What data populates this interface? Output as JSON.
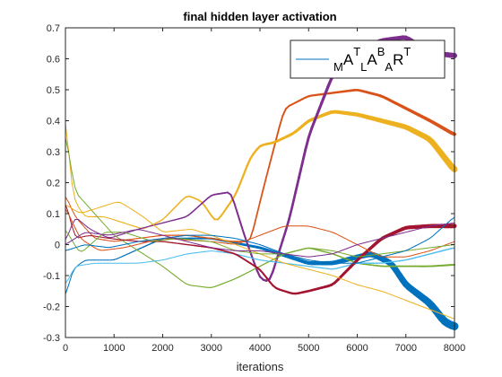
{
  "chart_data": {
    "type": "line",
    "title": "final hidden layer activation",
    "xlabel": "iterations",
    "ylabel": "",
    "xlim": [
      0,
      8000
    ],
    "ylim": [
      -0.3,
      0.7
    ],
    "xticks": [
      0,
      1000,
      2000,
      3000,
      4000,
      5000,
      6000,
      7000,
      8000
    ],
    "yticks": [
      -0.3,
      -0.2,
      -0.1,
      0,
      0.1,
      0.2,
      0.3,
      0.4,
      0.5,
      0.6,
      0.7
    ],
    "grid": false,
    "legend": {
      "placement": "top-right",
      "entries": [
        {
          "label_parts": [
            {
              "text": "M",
              "shift": "sub"
            },
            {
              "text": "A",
              "shift": "base"
            },
            {
              "text": "T",
              "shift": "super"
            },
            {
              "text": "L",
              "shift": "sub"
            },
            {
              "text": "A",
              "shift": "base"
            },
            {
              "text": "B",
              "shift": "super"
            },
            {
              "text": "A",
              "shift": "sub"
            },
            {
              "text": "R",
              "shift": "base"
            },
            {
              "text": "T",
              "shift": "super"
            }
          ],
          "color": "#0072BD"
        }
      ]
    },
    "series": [
      {
        "color": "#0072BD",
        "width": [
          1,
          9
        ],
        "x": [
          0,
          150,
          400,
          1000,
          2000,
          3000,
          4000,
          5000,
          5500,
          6000,
          6300,
          6700,
          7000,
          7500,
          7800,
          8000
        ],
        "y": [
          -0.17,
          -0.08,
          -0.05,
          -0.05,
          0.02,
          0.02,
          -0.01,
          -0.06,
          -0.06,
          -0.04,
          -0.03,
          -0.06,
          -0.13,
          -0.19,
          -0.25,
          -0.265
        ]
      },
      {
        "color": "#D95319",
        "width": [
          1,
          4
        ],
        "x": [
          0,
          200,
          600,
          1000,
          1500,
          2000,
          2500,
          3000,
          3400,
          3800,
          4100,
          4500,
          5000,
          5500,
          6000,
          6500,
          7000,
          7500,
          8000
        ],
        "y": [
          0.16,
          0.09,
          0.02,
          0.01,
          0.02,
          0.03,
          0.03,
          0.02,
          0.01,
          0.01,
          0.2,
          0.44,
          0.48,
          0.49,
          0.5,
          0.48,
          0.44,
          0.4,
          0.355
        ]
      },
      {
        "color": "#EDB120",
        "width": [
          1,
          7
        ],
        "x": [
          0,
          150,
          400,
          800,
          1200,
          1600,
          2000,
          2500,
          2800,
          3100,
          3500,
          3800,
          4000,
          4300,
          4700,
          5000,
          5500,
          6000,
          6500,
          7000,
          7500,
          7800,
          8000
        ],
        "y": [
          0.42,
          0.15,
          0.09,
          0.09,
          0.07,
          0.05,
          0.08,
          0.16,
          0.14,
          0.07,
          0.16,
          0.28,
          0.32,
          0.33,
          0.36,
          0.4,
          0.43,
          0.42,
          0.4,
          0.38,
          0.34,
          0.28,
          0.24
        ]
      },
      {
        "color": "#7E2F8E",
        "width": [
          1,
          6
        ],
        "x": [
          0,
          200,
          500,
          900,
          1500,
          2000,
          2500,
          3000,
          3400,
          3700,
          4000,
          4200,
          4600,
          5000,
          5500,
          6000,
          6500,
          7000,
          7500,
          8000
        ],
        "y": [
          0.01,
          0.09,
          0.05,
          0.02,
          0.05,
          0.07,
          0.09,
          0.16,
          0.17,
          0.02,
          -0.11,
          -0.12,
          0.08,
          0.35,
          0.55,
          0.63,
          0.66,
          0.67,
          0.62,
          0.61
        ]
      },
      {
        "color": "#77AC30",
        "width": [
          1,
          2
        ],
        "x": [
          0,
          200,
          600,
          1000,
          1500,
          2000,
          2500,
          3000,
          3500,
          4000,
          4500,
          5000,
          5500,
          6000,
          6500,
          7000,
          7500,
          8000
        ],
        "y": [
          0.36,
          0.17,
          0.1,
          0.03,
          -0.02,
          -0.07,
          -0.13,
          -0.14,
          -0.11,
          -0.07,
          -0.03,
          -0.01,
          -0.03,
          -0.06,
          -0.07,
          -0.07,
          -0.07,
          -0.065
        ]
      },
      {
        "color": "#4DBEEE",
        "width": [
          1,
          1.5
        ],
        "x": [
          0,
          200,
          600,
          1000,
          1500,
          2000,
          2500,
          3000,
          3500,
          4000,
          4500,
          5000,
          5500,
          6000,
          6500,
          7000,
          7500,
          8000
        ],
        "y": [
          -0.13,
          -0.07,
          -0.06,
          -0.06,
          -0.06,
          -0.05,
          -0.03,
          -0.02,
          -0.03,
          -0.05,
          -0.06,
          -0.07,
          -0.08,
          -0.06,
          -0.06,
          -0.05,
          -0.03,
          -0.01
        ]
      },
      {
        "color": "#A2142F",
        "width": [
          1,
          5
        ],
        "x": [
          0,
          200,
          500,
          900,
          1500,
          2000,
          2500,
          3000,
          3500,
          4000,
          4300,
          4700,
          5000,
          5500,
          6000,
          6500,
          7000,
          7500,
          8000
        ],
        "y": [
          0.14,
          0.02,
          0.03,
          0.02,
          0.01,
          0.01,
          0.0,
          -0.01,
          -0.03,
          -0.08,
          -0.14,
          -0.16,
          -0.15,
          -0.13,
          -0.05,
          0.02,
          0.055,
          0.06,
          0.06
        ]
      },
      {
        "color": "#D95319",
        "width": [
          1,
          1
        ],
        "x": [
          0,
          300,
          700,
          1200,
          2000,
          3000,
          3500,
          4000,
          4500,
          5000,
          5500,
          6000,
          6500,
          7000,
          7500,
          8000
        ],
        "y": [
          0.12,
          0.02,
          -0.02,
          -0.01,
          0.02,
          0.01,
          0.0,
          0.03,
          0.06,
          0.06,
          0.04,
          0.0,
          -0.04,
          -0.04,
          -0.02,
          0.01
        ]
      },
      {
        "color": "#EDB120",
        "width": [
          1,
          1
        ],
        "x": [
          0,
          300,
          700,
          1100,
          1600,
          2000,
          2600,
          3000,
          3500,
          4000,
          4500,
          5000,
          5500,
          6000,
          6500,
          7000,
          7500,
          8000
        ],
        "y": [
          0.13,
          0.1,
          0.12,
          0.14,
          0.09,
          0.04,
          0.05,
          0.03,
          0.0,
          -0.03,
          -0.06,
          -0.08,
          -0.1,
          -0.13,
          -0.15,
          -0.18,
          -0.21,
          -0.24
        ]
      },
      {
        "color": "#77AC30",
        "width": [
          1,
          1
        ],
        "x": [
          0,
          300,
          800,
          1200,
          1800,
          2300,
          3000,
          3500,
          4000,
          4500,
          5000,
          5500,
          6000,
          6500,
          7000,
          7500,
          8000
        ],
        "y": [
          0.05,
          -0.03,
          0.04,
          0.04,
          0.01,
          0.02,
          0.01,
          -0.02,
          -0.03,
          -0.03,
          -0.01,
          -0.02,
          -0.04,
          -0.03,
          -0.02,
          -0.01,
          0.0
        ]
      },
      {
        "color": "#0072BD",
        "width": [
          1,
          1
        ],
        "x": [
          0,
          400,
          900,
          1500,
          2000,
          2500,
          3000,
          3500,
          4000,
          4500,
          5000,
          5500,
          6000,
          6500,
          7000,
          7500,
          8000
        ],
        "y": [
          -0.02,
          0.0,
          -0.01,
          0.01,
          0.02,
          0.03,
          0.03,
          0.02,
          0.0,
          -0.03,
          -0.05,
          -0.06,
          -0.06,
          -0.04,
          -0.02,
          0.02,
          0.09
        ]
      },
      {
        "color": "#7E2F8E",
        "width": [
          1,
          1
        ],
        "x": [
          0,
          400,
          900,
          1500,
          2000,
          2500,
          3000,
          3500,
          4000,
          4500,
          5000,
          5500,
          6000,
          6500,
          7000,
          7500,
          8000
        ],
        "y": [
          0.0,
          0.04,
          0.03,
          0.05,
          0.03,
          0.01,
          -0.01,
          -0.02,
          -0.02,
          -0.03,
          -0.04,
          -0.03,
          0.0,
          0.02,
          0.04,
          0.06,
          0.07
        ]
      }
    ]
  }
}
